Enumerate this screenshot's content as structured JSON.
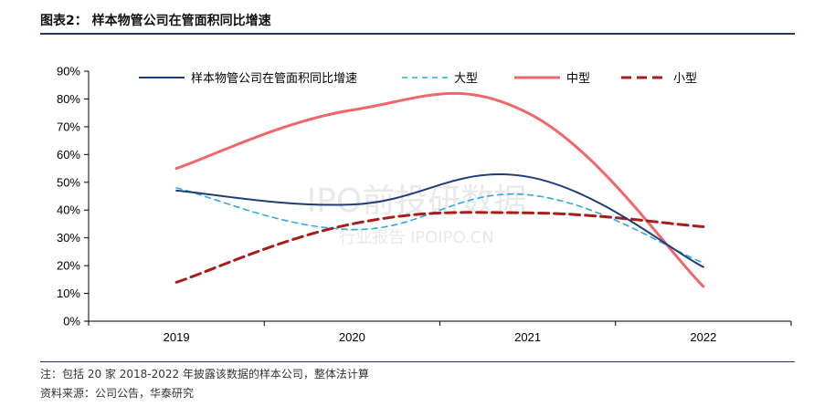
{
  "title": "图表2：  样本物管公司在管面积同比增速",
  "notes": {
    "note": "注：包括 20 家 2018-2022 年披露该数据的样本公司，整体法计算",
    "source": "资料来源：公司公告，华泰研究"
  },
  "watermark": {
    "main": "IPO前投研数据",
    "sub": "行业报告 IPOIPO.CN"
  },
  "chart_data": {
    "type": "line",
    "categories": [
      "2019",
      "2020",
      "2021",
      "2022"
    ],
    "ylim": [
      0,
      90
    ],
    "yticks": [
      "0%",
      "10%",
      "20%",
      "30%",
      "40%",
      "50%",
      "60%",
      "70%",
      "80%",
      "90%"
    ],
    "grid": false,
    "legend_placement": "top",
    "series": [
      {
        "name": "样本物管公司在管面积同比增速",
        "values": [
          47,
          42,
          52,
          19.5
        ],
        "color": "#1f3c78",
        "dash": "solid"
      },
      {
        "name": "大型",
        "values": [
          48,
          33,
          45.5,
          21
        ],
        "color": "#2fa9e0",
        "dash": "short"
      },
      {
        "name": "中型",
        "values": [
          55,
          76,
          75,
          12.5
        ],
        "color": "#f0666b",
        "dash": "solid"
      },
      {
        "name": "小型",
        "values": [
          14,
          35,
          39,
          34
        ],
        "color": "#a81c1c",
        "dash": "long"
      }
    ]
  }
}
